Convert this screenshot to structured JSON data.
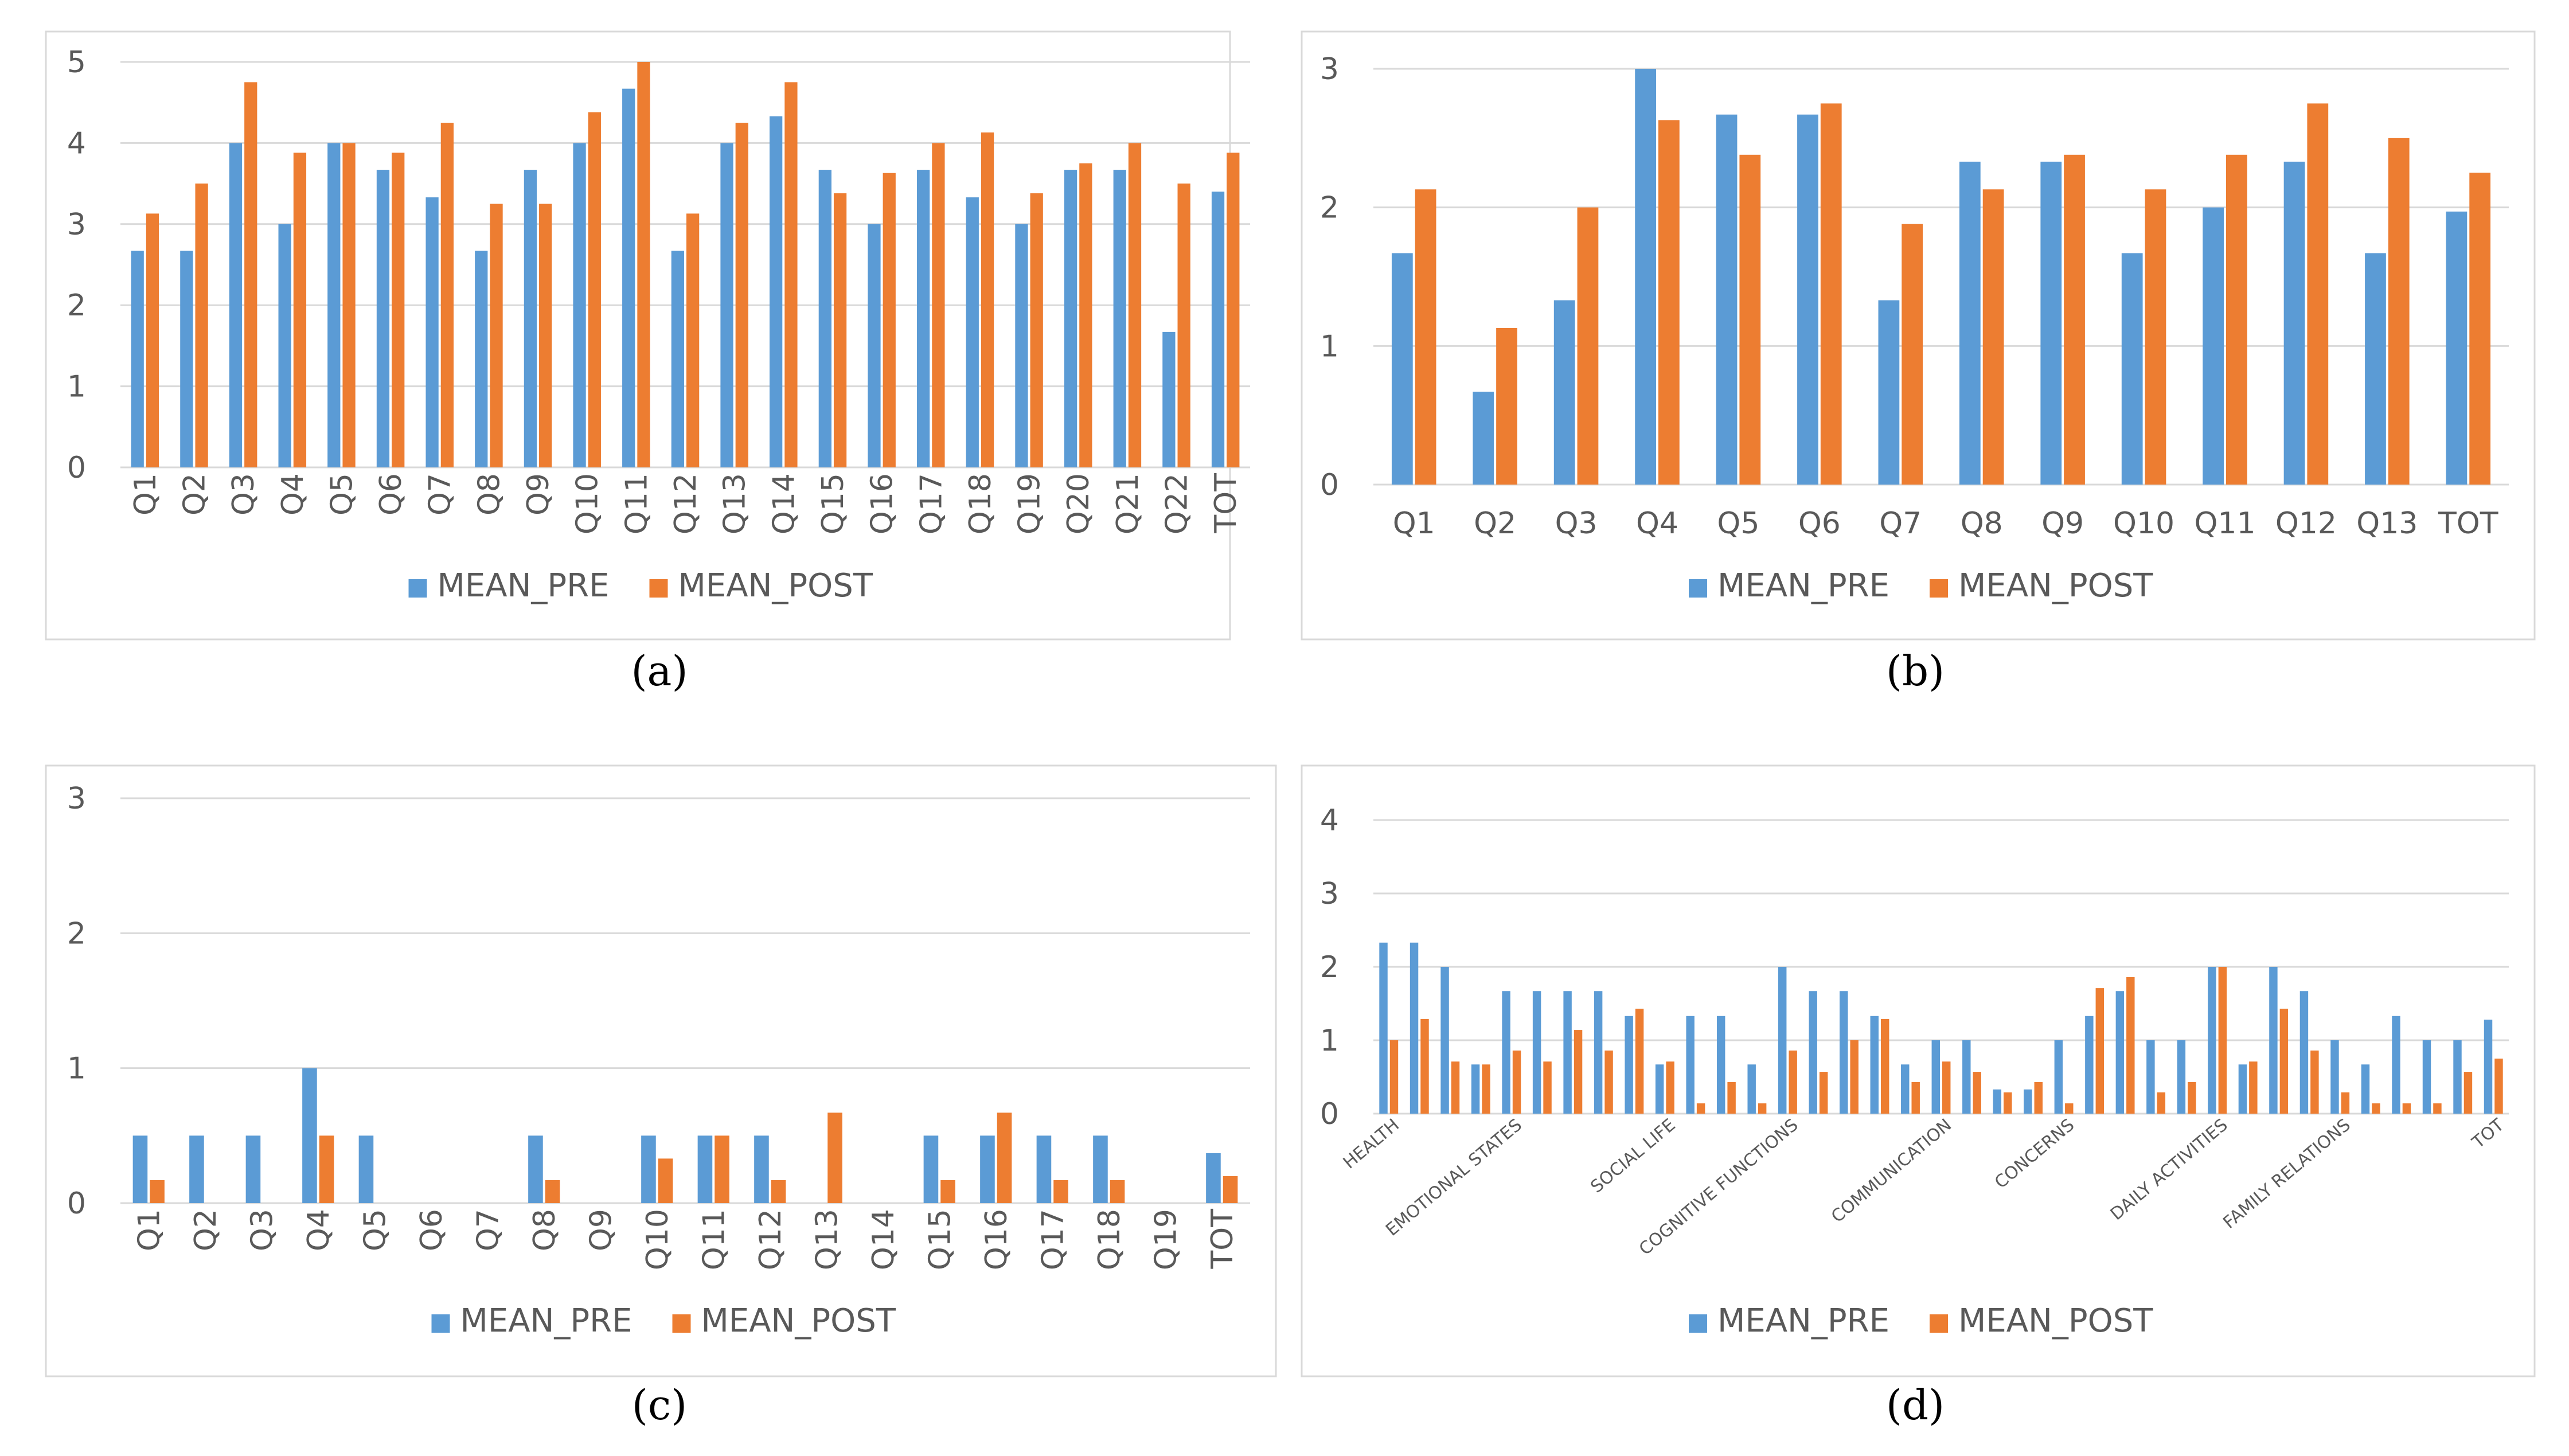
{
  "colors": {
    "pre": "#5B9BD5",
    "post": "#ED7D31",
    "grid": "#D9D9D9",
    "text": "#595959",
    "frame": "#D9D9D9"
  },
  "legend": {
    "pre": "MEAN_PRE",
    "post": "MEAN_POST"
  },
  "chart_data": [
    {
      "panel": "(a)",
      "type": "bar",
      "ylim": [
        0,
        5
      ],
      "yticks": [
        0,
        1,
        2,
        3,
        4,
        5
      ],
      "grid": true,
      "legend_position": "bottom",
      "categories": [
        "Q1",
        "Q2",
        "Q3",
        "Q4",
        "Q5",
        "Q6",
        "Q7",
        "Q8",
        "Q9",
        "Q10",
        "Q11",
        "Q12",
        "Q13",
        "Q14",
        "Q15",
        "Q16",
        "Q17",
        "Q18",
        "Q19",
        "Q20",
        "Q21",
        "Q22",
        "TOT"
      ],
      "series": [
        {
          "name": "MEAN_PRE",
          "values": [
            2.67,
            2.67,
            4.0,
            3.0,
            4.0,
            3.67,
            3.33,
            2.67,
            3.67,
            4.0,
            4.67,
            2.67,
            4.0,
            4.33,
            3.67,
            3.0,
            3.67,
            3.33,
            3.0,
            3.67,
            3.67,
            1.67,
            3.4
          ]
        },
        {
          "name": "MEAN_POST",
          "values": [
            3.13,
            3.5,
            4.75,
            3.88,
            4.0,
            3.88,
            4.25,
            3.25,
            3.25,
            4.38,
            5.0,
            3.13,
            4.25,
            4.75,
            3.38,
            3.63,
            4.0,
            4.13,
            3.38,
            3.75,
            4.0,
            3.5,
            3.88
          ]
        }
      ]
    },
    {
      "panel": "(b)",
      "type": "bar",
      "ylim": [
        0,
        3
      ],
      "yticks": [
        0,
        1,
        2,
        3
      ],
      "grid": true,
      "legend_position": "bottom",
      "categories": [
        "Q1",
        "Q2",
        "Q3",
        "Q4",
        "Q5",
        "Q6",
        "Q7",
        "Q8",
        "Q9",
        "Q10",
        "Q11",
        "Q12",
        "Q13",
        "TOT"
      ],
      "series": [
        {
          "name": "MEAN_PRE",
          "values": [
            1.67,
            0.67,
            1.33,
            3.0,
            2.67,
            2.67,
            1.33,
            2.33,
            2.33,
            1.67,
            2.0,
            2.33,
            1.67,
            1.97
          ]
        },
        {
          "name": "MEAN_POST",
          "values": [
            2.13,
            1.13,
            2.0,
            2.63,
            2.38,
            2.75,
            1.88,
            2.13,
            2.38,
            2.13,
            2.38,
            2.75,
            2.5,
            2.25
          ]
        }
      ]
    },
    {
      "panel": "(c)",
      "type": "bar",
      "ylim": [
        0,
        3
      ],
      "yticks": [
        0,
        1,
        2,
        3
      ],
      "grid": true,
      "legend_position": "bottom",
      "categories": [
        "Q1",
        "Q2",
        "Q3",
        "Q4",
        "Q5",
        "Q6",
        "Q7",
        "Q8",
        "Q9",
        "Q10",
        "Q11",
        "Q12",
        "Q13",
        "Q14",
        "Q15",
        "Q16",
        "Q17",
        "Q18",
        "Q19",
        "TOT"
      ],
      "series": [
        {
          "name": "MEAN_PRE",
          "values": [
            0.5,
            0.5,
            0.5,
            1.0,
            0.5,
            0,
            0,
            0.5,
            0,
            0.5,
            0.5,
            0.5,
            0,
            0,
            0.5,
            0.5,
            0.5,
            0.5,
            0,
            0.37
          ]
        },
        {
          "name": "MEAN_POST",
          "values": [
            0.17,
            0,
            0,
            0.5,
            0,
            0,
            0,
            0.17,
            0,
            0.33,
            0.5,
            0.17,
            0.67,
            0,
            0.17,
            0.67,
            0.17,
            0.17,
            0,
            0.2
          ]
        }
      ]
    },
    {
      "panel": "(d)",
      "type": "bar",
      "ylim": [
        0,
        4
      ],
      "yticks": [
        0,
        1,
        2,
        3,
        4
      ],
      "grid": true,
      "legend_position": "bottom",
      "n_bars": 37,
      "group_labels": [
        {
          "text": "HEALTH",
          "at": 0
        },
        {
          "text": "EMOTIONAL STATES",
          "at": 4
        },
        {
          "text": "SOCIAL LIFE",
          "at": 9
        },
        {
          "text": "COGNITIVE FUNCTIONS",
          "at": 13
        },
        {
          "text": "COMMUNICATION",
          "at": 18
        },
        {
          "text": "CONCERNS",
          "at": 22
        },
        {
          "text": "DAILY ACTIVITIES",
          "at": 27
        },
        {
          "text": "FAMILY RELATIONS",
          "at": 31
        },
        {
          "text": "TOT",
          "at": 36
        }
      ],
      "series": [
        {
          "name": "MEAN_PRE",
          "values": [
            2.33,
            2.33,
            2.0,
            0.67,
            1.67,
            1.67,
            1.67,
            1.67,
            1.33,
            0.67,
            1.33,
            1.33,
            0.67,
            2.0,
            1.67,
            1.67,
            1.33,
            0.67,
            1.0,
            1.0,
            0.33,
            0.33,
            1.0,
            1.33,
            1.67,
            1.0,
            1.0,
            2.0,
            0.67,
            2.0,
            1.67,
            1.0,
            0.67,
            1.33,
            1.0,
            1.0,
            1.28
          ]
        },
        {
          "name": "MEAN_POST",
          "values": [
            1.0,
            1.29,
            0.71,
            0.67,
            0.86,
            0.71,
            1.14,
            0.86,
            1.43,
            0.71,
            0.14,
            0.43,
            0.14,
            0.86,
            0.57,
            1.0,
            1.29,
            0.43,
            0.71,
            0.57,
            0.29,
            0.43,
            0.14,
            1.71,
            1.86,
            0.29,
            0.43,
            2.0,
            0.71,
            1.43,
            0.86,
            0.29,
            0.14,
            0.14,
            0.14,
            0.57,
            0.75
          ]
        }
      ]
    }
  ]
}
